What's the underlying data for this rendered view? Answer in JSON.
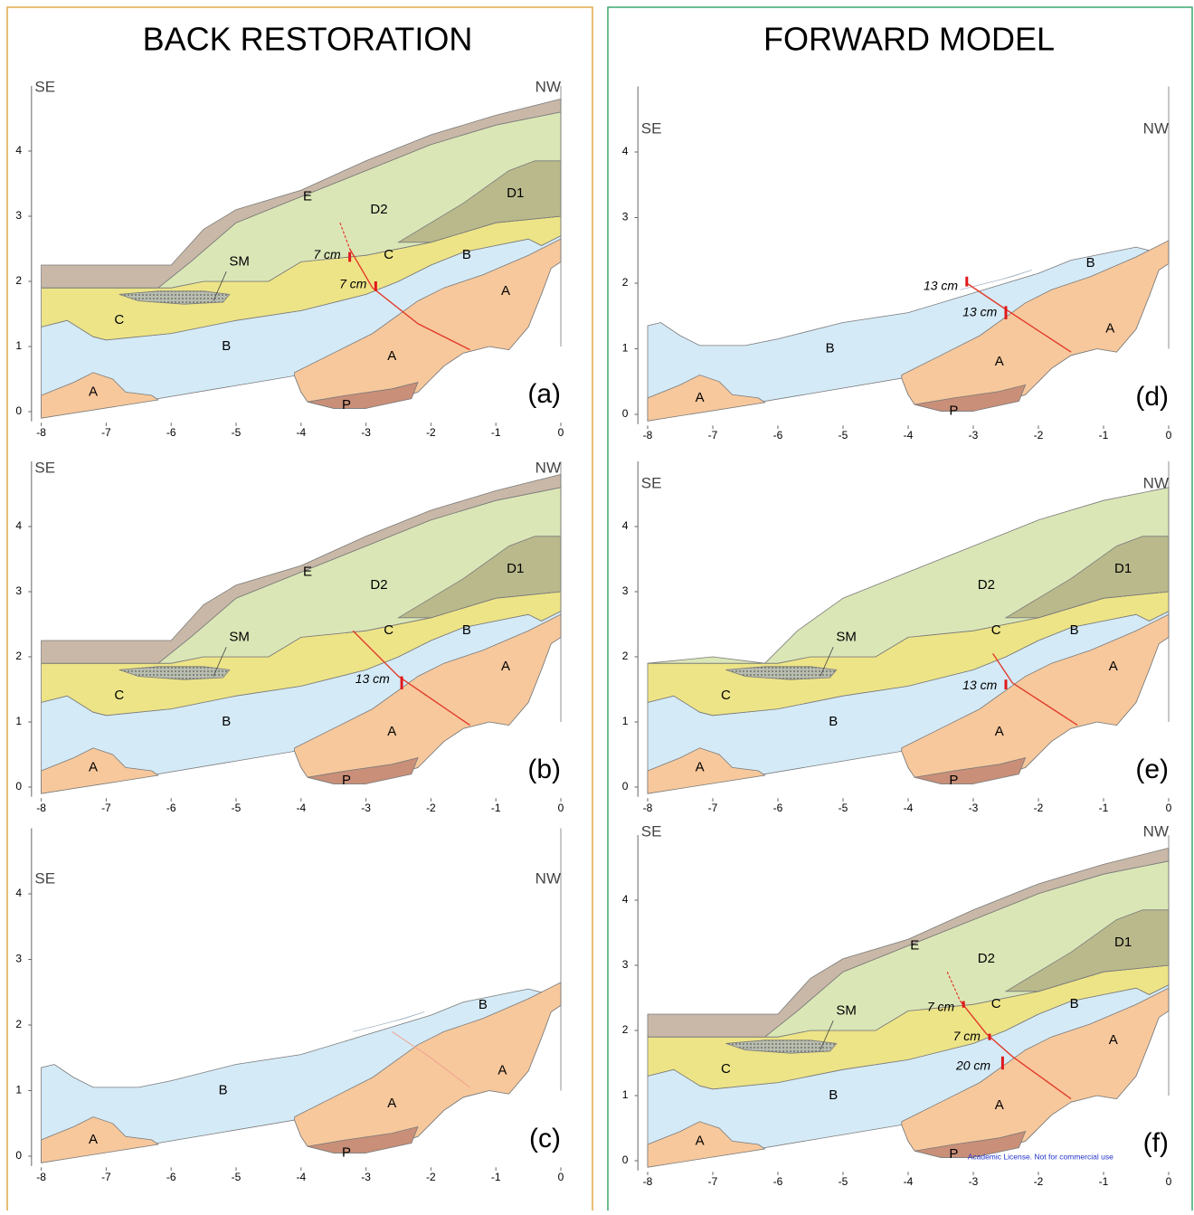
{
  "titles": {
    "left": "BACK RESTORATION",
    "right": "FORWARD MODEL"
  },
  "axes": {
    "xticks": [
      -8,
      -7,
      -6,
      -5,
      -4,
      -3,
      -2,
      -1,
      0
    ],
    "yticks": [
      0,
      1,
      2,
      3,
      4
    ]
  },
  "panels": [
    {
      "label": "(a)",
      "se": "SE",
      "nw": "NW",
      "layers": [
        "E",
        "D2",
        "D1",
        "SM",
        "C",
        "B",
        "A",
        "B",
        "A",
        "C",
        "A",
        "P"
      ],
      "annotations": [
        "7 cm",
        "7 cm"
      ]
    },
    {
      "label": "(b)",
      "se": "SE",
      "nw": "NW",
      "layers": [
        "E",
        "D2",
        "D1",
        "SM",
        "C",
        "B",
        "A",
        "B",
        "A",
        "C",
        "A",
        "P"
      ],
      "annotations": [
        "13 cm"
      ]
    },
    {
      "label": "(c)",
      "se": "SE",
      "nw": "NW",
      "layers": [
        "B",
        "A",
        "B",
        "A",
        "A",
        "P"
      ],
      "annotations": []
    },
    {
      "label": "(d)",
      "se": "SE",
      "nw": "NW",
      "layers": [
        "B",
        "A",
        "B",
        "A",
        "A",
        "P"
      ],
      "annotations": [
        "13 cm",
        "13 cm"
      ]
    },
    {
      "label": "(e)",
      "se": "SE",
      "nw": "NW",
      "layers": [
        "D2",
        "D1",
        "SM",
        "C",
        "B",
        "A",
        "B",
        "A",
        "C",
        "A",
        "P"
      ],
      "annotations": [
        "13 cm"
      ]
    },
    {
      "label": "(f)",
      "se": "SE",
      "nw": "NW",
      "layers": [
        "E",
        "D2",
        "D1",
        "SM",
        "C",
        "B",
        "A",
        "B",
        "A",
        "C",
        "A",
        "P"
      ],
      "annotations": [
        "7 cm",
        "7 cm",
        "20 cm"
      ]
    }
  ],
  "footnote": "Academic License. Not for commercial use"
}
